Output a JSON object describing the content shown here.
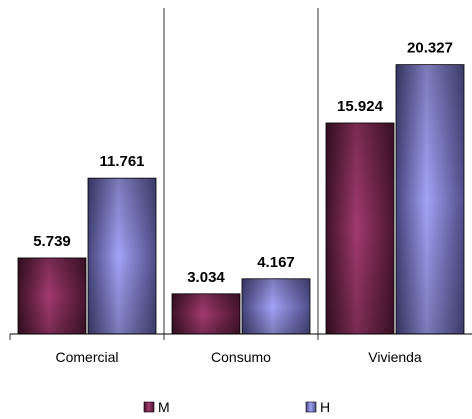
{
  "chart_data": {
    "type": "bar",
    "categories": [
      "Comercial",
      "Consumo",
      "Vivienda"
    ],
    "series": [
      {
        "name": "M",
        "values": [
          5.739,
          3.034,
          15.924
        ],
        "labels": [
          "5.739",
          "3.034",
          "15.924"
        ],
        "color": "#7a2a4e"
      },
      {
        "name": "H",
        "values": [
          11.761,
          4.167,
          20.327
        ],
        "labels": [
          "11.761",
          "4.167",
          "20.327"
        ],
        "color": "#7f7fd0"
      }
    ],
    "title": "",
    "xlabel": "",
    "ylabel": "",
    "ylim": [
      0,
      24.6
    ],
    "grid": false,
    "legend": "bottom",
    "axis_color": "#000000",
    "bar_shading": "3d-gradient"
  }
}
